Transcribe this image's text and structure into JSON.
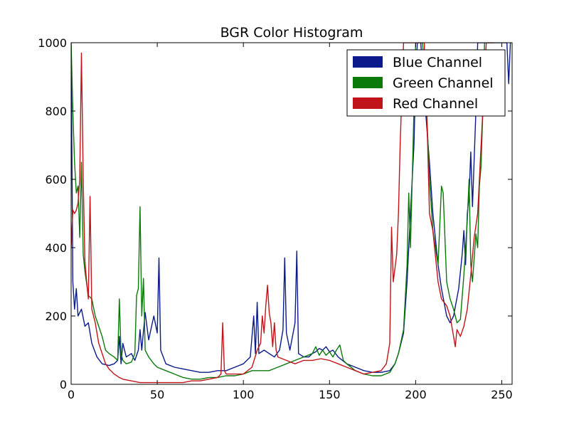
{
  "chart_data": {
    "type": "line",
    "title": "BGR Color Histogram",
    "xlabel": "",
    "ylabel": "",
    "xlim": [
      0,
      256
    ],
    "ylim": [
      0,
      1000
    ],
    "xticks": [
      0,
      50,
      100,
      150,
      200,
      250
    ],
    "yticks": [
      0,
      200,
      400,
      600,
      800,
      1000
    ],
    "grid": false,
    "legend_position": "top-right",
    "series": [
      {
        "name": "Blue Channel",
        "color": "#0a1a8a",
        "points": [
          [
            0,
            1000
          ],
          [
            1,
            300
          ],
          [
            2,
            220
          ],
          [
            3,
            280
          ],
          [
            4,
            200
          ],
          [
            6,
            220
          ],
          [
            8,
            170
          ],
          [
            10,
            180
          ],
          [
            12,
            120
          ],
          [
            15,
            80
          ],
          [
            18,
            60
          ],
          [
            22,
            55
          ],
          [
            25,
            60
          ],
          [
            27,
            70
          ],
          [
            28,
            140
          ],
          [
            29,
            60
          ],
          [
            30,
            120
          ],
          [
            32,
            80
          ],
          [
            35,
            90
          ],
          [
            37,
            70
          ],
          [
            39,
            100
          ],
          [
            40,
            160
          ],
          [
            41,
            100
          ],
          [
            43,
            210
          ],
          [
            45,
            130
          ],
          [
            48,
            200
          ],
          [
            50,
            150
          ],
          [
            51,
            370
          ],
          [
            52,
            100
          ],
          [
            55,
            60
          ],
          [
            60,
            50
          ],
          [
            65,
            45
          ],
          [
            70,
            40
          ],
          [
            75,
            35
          ],
          [
            80,
            35
          ],
          [
            85,
            40
          ],
          [
            90,
            40
          ],
          [
            95,
            50
          ],
          [
            100,
            60
          ],
          [
            104,
            80
          ],
          [
            106,
            200
          ],
          [
            107,
            90
          ],
          [
            108,
            240
          ],
          [
            109,
            90
          ],
          [
            112,
            100
          ],
          [
            115,
            90
          ],
          [
            118,
            80
          ],
          [
            121,
            100
          ],
          [
            123,
            160
          ],
          [
            124,
            370
          ],
          [
            125,
            150
          ],
          [
            127,
            100
          ],
          [
            130,
            180
          ],
          [
            131,
            390
          ],
          [
            132,
            90
          ],
          [
            135,
            80
          ],
          [
            138,
            80
          ],
          [
            140,
            90
          ],
          [
            142,
            95
          ],
          [
            144,
            105
          ],
          [
            146,
            100
          ],
          [
            148,
            110
          ],
          [
            150,
            95
          ],
          [
            152,
            100
          ],
          [
            155,
            80
          ],
          [
            160,
            60
          ],
          [
            165,
            50
          ],
          [
            170,
            40
          ],
          [
            175,
            35
          ],
          [
            180,
            35
          ],
          [
            185,
            40
          ],
          [
            188,
            60
          ],
          [
            190,
            90
          ],
          [
            193,
            150
          ],
          [
            195,
            300
          ],
          [
            197,
            500
          ],
          [
            199,
            700
          ],
          [
            200,
            900
          ],
          [
            201,
            1000
          ],
          [
            203,
            1000
          ],
          [
            205,
            850
          ],
          [
            208,
            650
          ],
          [
            210,
            500
          ],
          [
            213,
            350
          ],
          [
            215,
            280
          ],
          [
            218,
            200
          ],
          [
            220,
            180
          ],
          [
            222,
            200
          ],
          [
            225,
            280
          ],
          [
            227,
            380
          ],
          [
            228,
            450
          ],
          [
            229,
            350
          ],
          [
            230,
            500
          ],
          [
            231,
            550
          ],
          [
            232,
            680
          ],
          [
            233,
            520
          ],
          [
            235,
            800
          ],
          [
            236,
            1000
          ],
          [
            238,
            1000
          ],
          [
            240,
            1000
          ],
          [
            242,
            1000
          ],
          [
            250,
            1000
          ],
          [
            253,
            1000
          ],
          [
            254,
            880
          ],
          [
            255,
            1000
          ]
        ]
      },
      {
        "name": "Green Channel",
        "color": "#0a7a0a",
        "points": [
          [
            0,
            1000
          ],
          [
            1,
            800
          ],
          [
            2,
            650
          ],
          [
            3,
            560
          ],
          [
            4,
            580
          ],
          [
            5,
            430
          ],
          [
            6,
            650
          ],
          [
            7,
            380
          ],
          [
            8,
            330
          ],
          [
            10,
            260
          ],
          [
            12,
            250
          ],
          [
            14,
            200
          ],
          [
            16,
            170
          ],
          [
            18,
            140
          ],
          [
            20,
            100
          ],
          [
            22,
            90
          ],
          [
            25,
            80
          ],
          [
            27,
            70
          ],
          [
            28,
            250
          ],
          [
            29,
            90
          ],
          [
            30,
            70
          ],
          [
            32,
            60
          ],
          [
            35,
            65
          ],
          [
            37,
            90
          ],
          [
            38,
            260
          ],
          [
            39,
            280
          ],
          [
            40,
            520
          ],
          [
            41,
            200
          ],
          [
            42,
            310
          ],
          [
            43,
            100
          ],
          [
            45,
            80
          ],
          [
            48,
            60
          ],
          [
            50,
            50
          ],
          [
            55,
            40
          ],
          [
            60,
            30
          ],
          [
            65,
            20
          ],
          [
            70,
            15
          ],
          [
            75,
            15
          ],
          [
            80,
            20
          ],
          [
            85,
            20
          ],
          [
            90,
            25
          ],
          [
            95,
            25
          ],
          [
            100,
            30
          ],
          [
            105,
            40
          ],
          [
            110,
            40
          ],
          [
            115,
            40
          ],
          [
            120,
            50
          ],
          [
            125,
            60
          ],
          [
            130,
            70
          ],
          [
            135,
            80
          ],
          [
            140,
            90
          ],
          [
            142,
            110
          ],
          [
            144,
            85
          ],
          [
            146,
            100
          ],
          [
            148,
            85
          ],
          [
            150,
            95
          ],
          [
            152,
            80
          ],
          [
            154,
            100
          ],
          [
            156,
            115
          ],
          [
            158,
            70
          ],
          [
            160,
            60
          ],
          [
            165,
            40
          ],
          [
            170,
            30
          ],
          [
            175,
            25
          ],
          [
            180,
            25
          ],
          [
            185,
            35
          ],
          [
            188,
            60
          ],
          [
            190,
            90
          ],
          [
            193,
            160
          ],
          [
            195,
            350
          ],
          [
            196,
            560
          ],
          [
            197,
            400
          ],
          [
            199,
            800
          ],
          [
            200,
            1000
          ],
          [
            204,
            1000
          ],
          [
            206,
            850
          ],
          [
            208,
            600
          ],
          [
            210,
            450
          ],
          [
            213,
            350
          ],
          [
            215,
            580
          ],
          [
            216,
            560
          ],
          [
            218,
            300
          ],
          [
            220,
            250
          ],
          [
            222,
            220
          ],
          [
            224,
            180
          ],
          [
            226,
            190
          ],
          [
            228,
            320
          ],
          [
            230,
            480
          ],
          [
            231,
            600
          ],
          [
            232,
            350
          ],
          [
            233,
            300
          ],
          [
            235,
            440
          ],
          [
            236,
            400
          ],
          [
            237,
            580
          ],
          [
            238,
            640
          ],
          [
            239,
            800
          ],
          [
            240,
            1000
          ],
          [
            242,
            1000
          ],
          [
            245,
            1000
          ]
        ]
      },
      {
        "name": "Red Channel",
        "color": "#c0141a",
        "points": [
          [
            0,
            400
          ],
          [
            1,
            510
          ],
          [
            2,
            500
          ],
          [
            3,
            510
          ],
          [
            4,
            530
          ],
          [
            5,
            600
          ],
          [
            6,
            970
          ],
          [
            7,
            600
          ],
          [
            8,
            360
          ],
          [
            9,
            300
          ],
          [
            10,
            250
          ],
          [
            11,
            550
          ],
          [
            12,
            220
          ],
          [
            14,
            180
          ],
          [
            16,
            120
          ],
          [
            18,
            90
          ],
          [
            20,
            60
          ],
          [
            22,
            45
          ],
          [
            25,
            30
          ],
          [
            28,
            20
          ],
          [
            30,
            15
          ],
          [
            35,
            10
          ],
          [
            40,
            5
          ],
          [
            45,
            5
          ],
          [
            50,
            5
          ],
          [
            55,
            5
          ],
          [
            60,
            5
          ],
          [
            65,
            5
          ],
          [
            70,
            10
          ],
          [
            75,
            10
          ],
          [
            80,
            15
          ],
          [
            85,
            20
          ],
          [
            87,
            30
          ],
          [
            88,
            180
          ],
          [
            89,
            40
          ],
          [
            90,
            30
          ],
          [
            95,
            30
          ],
          [
            100,
            30
          ],
          [
            105,
            50
          ],
          [
            108,
            100
          ],
          [
            110,
            120
          ],
          [
            111,
            200
          ],
          [
            112,
            150
          ],
          [
            113,
            230
          ],
          [
            114,
            290
          ],
          [
            115,
            210
          ],
          [
            116,
            180
          ],
          [
            117,
            110
          ],
          [
            118,
            180
          ],
          [
            119,
            100
          ],
          [
            120,
            80
          ],
          [
            125,
            70
          ],
          [
            130,
            60
          ],
          [
            135,
            70
          ],
          [
            140,
            70
          ],
          [
            145,
            75
          ],
          [
            150,
            70
          ],
          [
            155,
            60
          ],
          [
            160,
            50
          ],
          [
            165,
            40
          ],
          [
            170,
            30
          ],
          [
            175,
            35
          ],
          [
            180,
            40
          ],
          [
            183,
            60
          ],
          [
            185,
            120
          ],
          [
            186,
            460
          ],
          [
            187,
            300
          ],
          [
            189,
            380
          ],
          [
            190,
            500
          ],
          [
            191,
            700
          ],
          [
            192,
            850
          ],
          [
            193,
            1000
          ],
          [
            200,
            1000
          ],
          [
            205,
            1000
          ],
          [
            207,
            700
          ],
          [
            208,
            500
          ],
          [
            210,
            450
          ],
          [
            213,
            300
          ],
          [
            215,
            250
          ],
          [
            218,
            230
          ],
          [
            220,
            200
          ],
          [
            222,
            140
          ],
          [
            223,
            110
          ],
          [
            224,
            160
          ],
          [
            226,
            140
          ],
          [
            228,
            170
          ],
          [
            230,
            220
          ],
          [
            232,
            320
          ],
          [
            234,
            430
          ],
          [
            236,
            500
          ],
          [
            237,
            600
          ],
          [
            238,
            700
          ],
          [
            239,
            800
          ],
          [
            240,
            900
          ],
          [
            241,
            1000
          ],
          [
            245,
            1000
          ]
        ]
      }
    ]
  }
}
